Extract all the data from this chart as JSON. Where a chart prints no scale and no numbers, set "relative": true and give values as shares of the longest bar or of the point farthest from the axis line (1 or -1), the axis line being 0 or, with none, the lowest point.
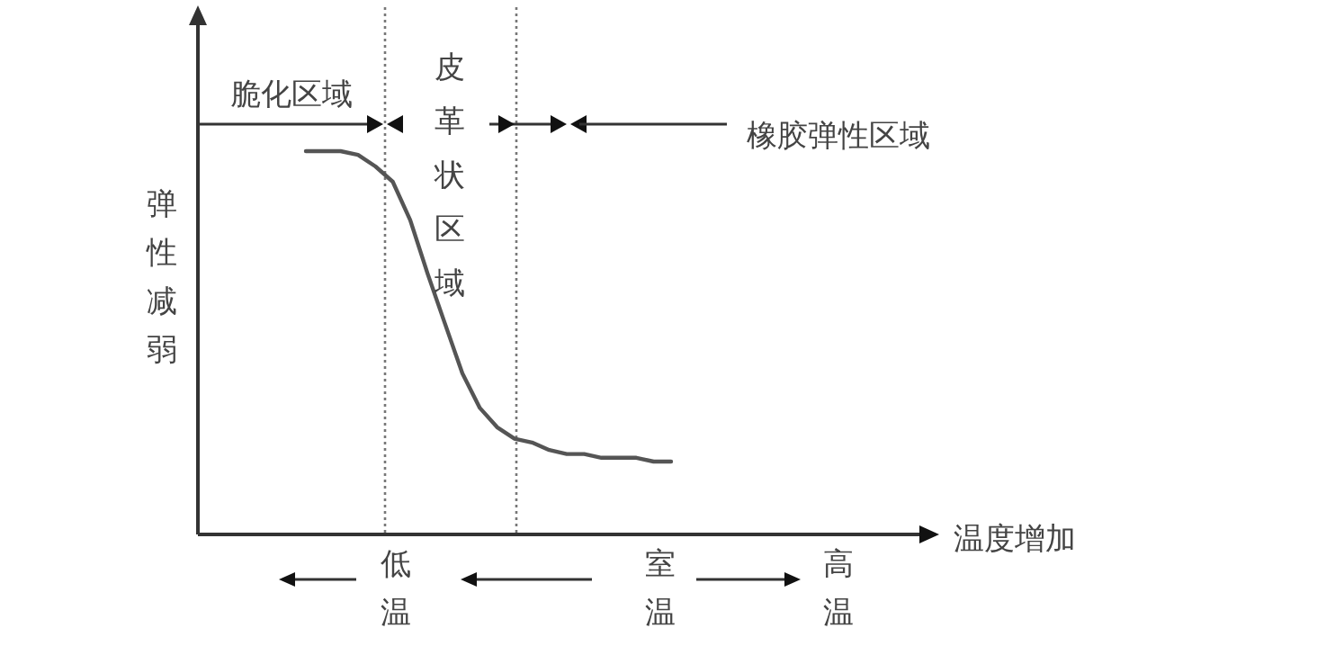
{
  "chart_data": {
    "type": "line",
    "relative": true,
    "ylabel": "弹性减弱",
    "categories": [
      null,
      null,
      null,
      null,
      null,
      null,
      null,
      null,
      null,
      null,
      null,
      null,
      null,
      null,
      null,
      null,
      null,
      null,
      null,
      null,
      null,
      null
    ],
    "series": [
      {
        "color": "#555555",
        "values": [
          1,
          1,
          1,
          0.99,
          0.96,
          0.92,
          0.82,
          0.68,
          0.55,
          0.42,
          0.33,
          0.28,
          0.25,
          0.24,
          0.22,
          0.21,
          0.21,
          0.2,
          0.2,
          0.2,
          0.19,
          0.19
        ]
      }
    ],
    "annotations": [
      "脆化区域",
      "皮革状区域",
      "橡胶弹性区域",
      "低温",
      "室温",
      "高温",
      "温度增加"
    ]
  }
}
